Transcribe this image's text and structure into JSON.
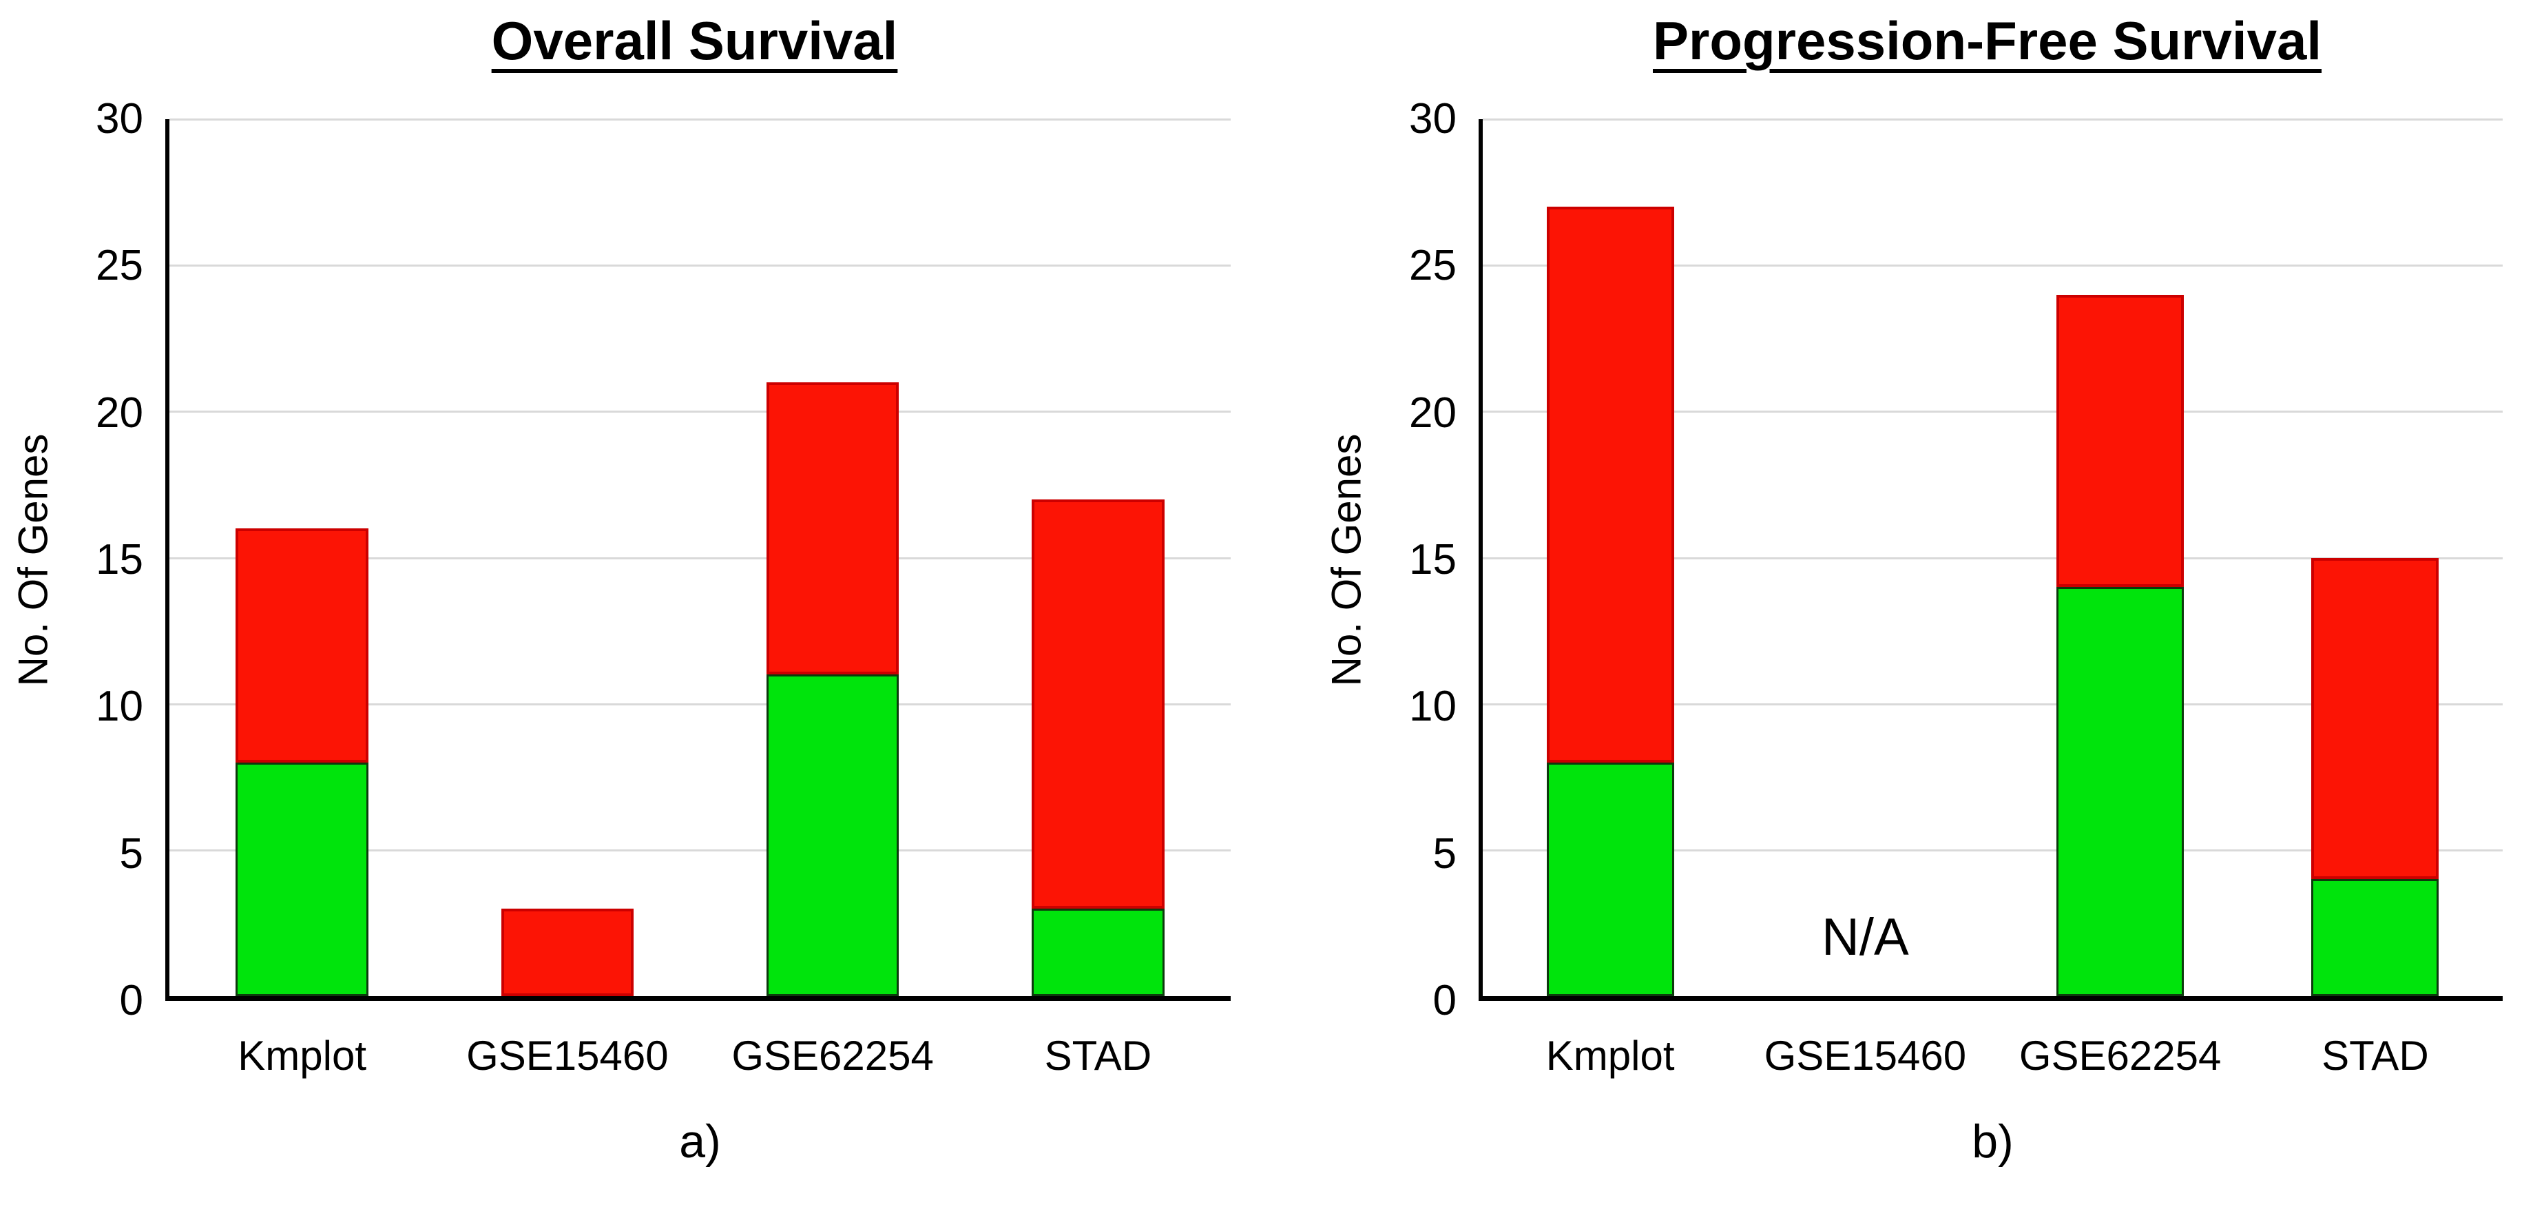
{
  "figure": {
    "background": "#ffffff"
  },
  "colors": {
    "green_fill": "#00e40c",
    "green_border": "#0d3a0d",
    "red_fill": "#fc1405",
    "red_border": "#cc0000",
    "gridline": "#d9d9d9",
    "axis": "#000000",
    "text": "#000000"
  },
  "chart_data": [
    {
      "type": "bar",
      "stacked": true,
      "title": "Overall Survival",
      "caption": "a)",
      "ylabel": "No. Of Genes",
      "ylim": [
        0,
        30
      ],
      "ytick_step": 5,
      "grid": true,
      "legend": "none",
      "categories": [
        "Kmplot",
        "GSE15460",
        "GSE62254",
        "STAD"
      ],
      "series": [
        {
          "name": "green",
          "color": "#00e40c",
          "values": [
            8,
            0,
            11,
            3
          ]
        },
        {
          "name": "red",
          "color": "#fc1405",
          "values": [
            8,
            3,
            10,
            14
          ]
        }
      ],
      "totals": [
        16,
        3,
        21,
        17
      ],
      "annotations": []
    },
    {
      "type": "bar",
      "stacked": true,
      "title": "Progression-Free Survival",
      "caption": "b)",
      "ylabel": "No. Of Genes",
      "ylim": [
        0,
        30
      ],
      "ytick_step": 5,
      "grid": true,
      "legend": "none",
      "categories": [
        "Kmplot",
        "GSE15460",
        "GSE62254",
        "STAD"
      ],
      "series": [
        {
          "name": "green",
          "color": "#00e40c",
          "values": [
            8,
            null,
            14,
            4
          ]
        },
        {
          "name": "red",
          "color": "#fc1405",
          "values": [
            19,
            null,
            10,
            11
          ]
        }
      ],
      "totals": [
        27,
        null,
        24,
        15
      ],
      "annotations": [
        {
          "text": "N/A",
          "category": "GSE15460"
        }
      ]
    }
  ]
}
